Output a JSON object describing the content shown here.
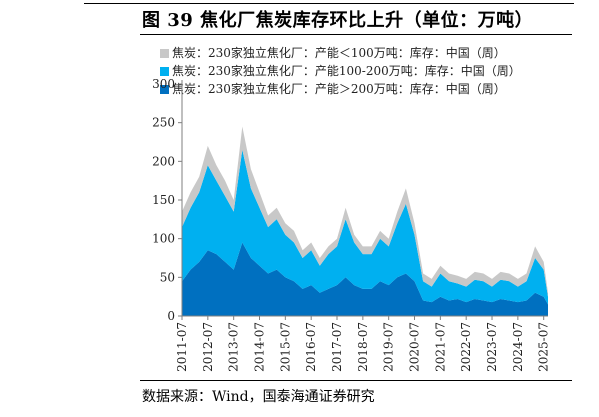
{
  "figure": {
    "title": "图 39 焦化厂焦炭库存环比上升（单位：万吨）",
    "source": "数据来源：Wind，国泰海通证券研究"
  },
  "colors": {
    "small": "#c8c8c8",
    "medium": "#00b0f0",
    "large": "#0070c0"
  },
  "chart_data": {
    "type": "area",
    "stacked": true,
    "title": "图 39 焦化厂焦炭库存环比上升（单位：万吨）",
    "xlabel": "",
    "ylabel": "",
    "ylim": [
      0,
      300
    ],
    "yticks": [
      0,
      50,
      100,
      150,
      200,
      250,
      300
    ],
    "x_tick_labels": [
      "2011-07",
      "2012-07",
      "2013-07",
      "2014-07",
      "2015-07",
      "2016-07",
      "2017-07",
      "2018-07",
      "2019-07",
      "2020-07",
      "2021-07",
      "2022-07",
      "2023-07",
      "2024-07",
      "2025-07"
    ],
    "legend_position": "top",
    "grid": false,
    "x": [
      "2011-07",
      "2011-11",
      "2012-03",
      "2012-07",
      "2012-11",
      "2013-03",
      "2013-07",
      "2013-11",
      "2014-03",
      "2014-07",
      "2014-11",
      "2015-03",
      "2015-07",
      "2015-11",
      "2016-03",
      "2016-07",
      "2016-11",
      "2017-03",
      "2017-07",
      "2017-11",
      "2018-03",
      "2018-07",
      "2018-11",
      "2019-03",
      "2019-07",
      "2019-11",
      "2020-03",
      "2020-07",
      "2020-11",
      "2021-03",
      "2021-07",
      "2021-11",
      "2022-03",
      "2022-07",
      "2022-11",
      "2023-03",
      "2023-07",
      "2023-11",
      "2024-03",
      "2024-07",
      "2024-11",
      "2025-03",
      "2025-07",
      "2025-09"
    ],
    "series": [
      {
        "name": "焦炭：230家独立焦化厂：产能＞200万吨：库存：中国（周）",
        "values": [
          45,
          60,
          70,
          85,
          80,
          70,
          60,
          95,
          75,
          65,
          55,
          60,
          50,
          45,
          35,
          40,
          30,
          35,
          40,
          50,
          40,
          35,
          35,
          45,
          40,
          50,
          55,
          45,
          20,
          18,
          25,
          20,
          22,
          18,
          22,
          20,
          18,
          22,
          20,
          18,
          20,
          30,
          25,
          15
        ]
      },
      {
        "name": "焦炭：230家独立焦化厂：产能100-200万吨：库存：中国（周）",
        "values": [
          70,
          80,
          90,
          110,
          95,
          85,
          75,
          120,
          90,
          75,
          60,
          65,
          55,
          50,
          40,
          45,
          35,
          45,
          50,
          75,
          55,
          45,
          45,
          55,
          50,
          70,
          90,
          60,
          25,
          20,
          30,
          25,
          20,
          20,
          25,
          25,
          20,
          25,
          25,
          20,
          25,
          45,
          35,
          10
        ]
      },
      {
        "name": "焦炭：230家独立焦化厂：产能＜100万吨：库存：中国（周）",
        "values": [
          20,
          20,
          20,
          25,
          20,
          20,
          15,
          30,
          25,
          20,
          15,
          15,
          15,
          15,
          10,
          10,
          10,
          10,
          10,
          15,
          10,
          10,
          10,
          10,
          10,
          15,
          20,
          15,
          10,
          10,
          10,
          10,
          10,
          10,
          10,
          10,
          10,
          10,
          10,
          10,
          10,
          15,
          10,
          5
        ]
      }
    ]
  }
}
